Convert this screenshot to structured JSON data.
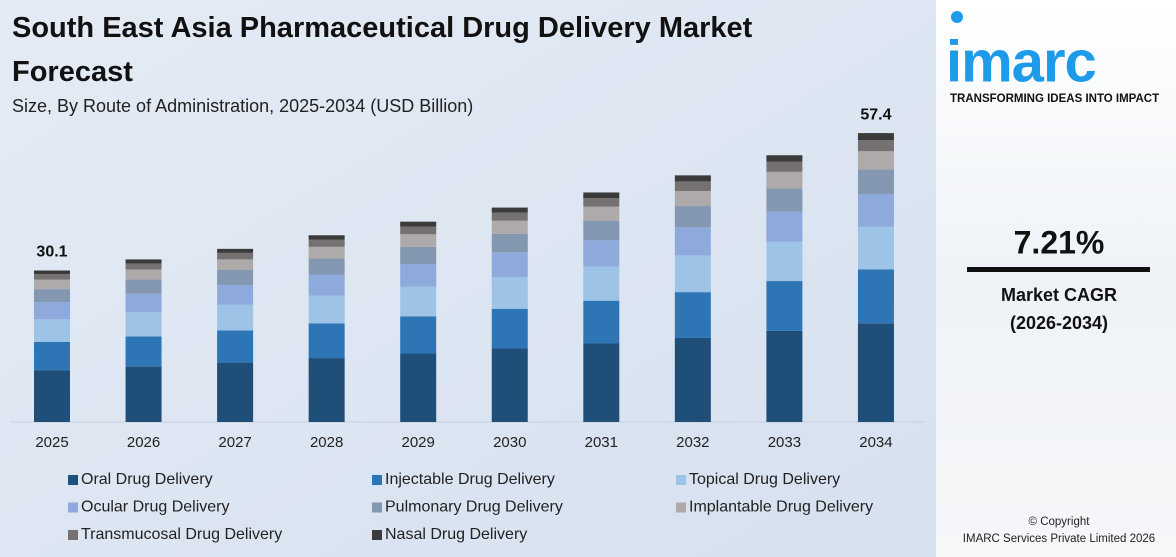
{
  "chart_data": {
    "type": "stacked-bar",
    "title": "South East Asia Pharmaceutical Drug Delivery Market Forecast",
    "subtitle": "Size, By Route of Administration, 2025-2034 (USD Billion)",
    "categories": [
      "2025",
      "2026",
      "2027",
      "2028",
      "2029",
      "2030",
      "2031",
      "2032",
      "2033",
      "2034"
    ],
    "series": [
      {
        "name": "Oral Drug Delivery",
        "color": "#1f4e79",
        "values": [
          10.3,
          11.0,
          11.8,
          12.7,
          13.6,
          14.6,
          15.6,
          16.7,
          18.1,
          19.6
        ]
      },
      {
        "name": "Injectable Drug Delivery",
        "color": "#2e75b6",
        "values": [
          5.6,
          6.0,
          6.4,
          6.9,
          7.4,
          7.9,
          8.5,
          9.1,
          9.9,
          10.7
        ]
      },
      {
        "name": "Topical Drug Delivery",
        "color": "#9dc3e6",
        "values": [
          4.5,
          4.8,
          5.1,
          5.5,
          5.9,
          6.3,
          6.8,
          7.3,
          7.8,
          8.5
        ]
      },
      {
        "name": "Ocular Drug Delivery",
        "color": "#8ea9db",
        "values": [
          3.4,
          3.7,
          3.9,
          4.2,
          4.5,
          4.9,
          5.2,
          5.6,
          6.0,
          6.5
        ]
      },
      {
        "name": "Pulmonary Drug Delivery",
        "color": "#8497b0",
        "values": [
          2.6,
          2.8,
          3.0,
          3.2,
          3.4,
          3.7,
          3.9,
          4.2,
          4.6,
          4.9
        ]
      },
      {
        "name": "Implantable Drug Delivery",
        "color": "#aeaaaa",
        "values": [
          1.9,
          2.0,
          2.1,
          2.3,
          2.5,
          2.6,
          2.8,
          3.0,
          3.3,
          3.6
        ]
      },
      {
        "name": "Transmucosal Drug Delivery",
        "color": "#767171",
        "values": [
          1.1,
          1.2,
          1.3,
          1.4,
          1.5,
          1.6,
          1.7,
          1.9,
          2.0,
          2.2
        ]
      },
      {
        "name": "Nasal Drug Delivery",
        "color": "#3a3a3a",
        "values": [
          0.7,
          0.8,
          0.8,
          0.9,
          1.0,
          1.0,
          1.1,
          1.2,
          1.3,
          1.4
        ]
      }
    ],
    "total_labels": [
      30.1,
      null,
      null,
      null,
      null,
      null,
      null,
      null,
      null,
      57.4
    ],
    "ylim": [
      0,
      60
    ]
  },
  "sidebar": {
    "logo": "imarc",
    "tagline": "TRANSFORMING IDEAS INTO IMPACT",
    "cagr": "7.21%",
    "cagr_label": "Market CAGR",
    "cagr_period": "(2026-2034)",
    "copyright": "© Copyright",
    "company": "IMARC Services Private Limited 2026"
  }
}
